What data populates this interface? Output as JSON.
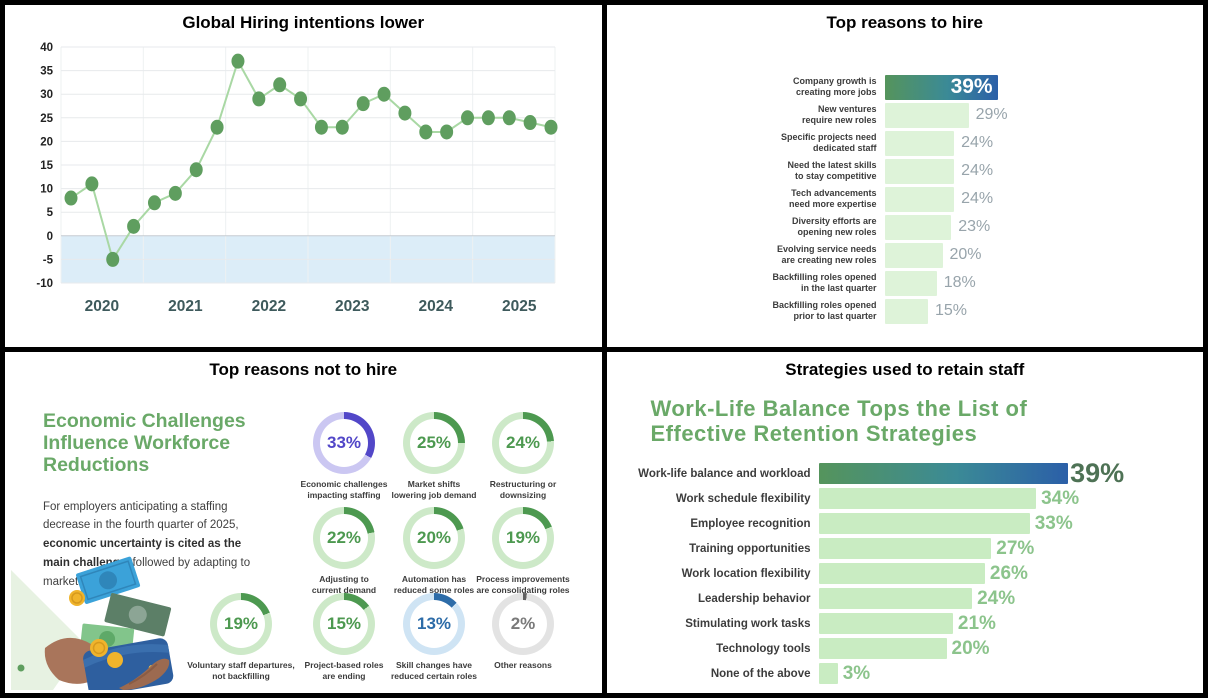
{
  "colors": {
    "dot_green": "#5f9e5f",
    "line_green": "#a9d8a4",
    "neg_band_blue": "#dcedf8",
    "grid_line": "#e7eaec",
    "zero_line": "#c5ccd2",
    "year_label": "#3e5a5c",
    "tick_label": "#222222",
    "donut_green": "#4d9950",
    "donut_green_track": "#cde9c8",
    "donut_purple": "#5247c8",
    "donut_purple_track": "#cbc7f2",
    "donut_blue": "#2d6ca8",
    "donut_blue_track": "#cfe4f4",
    "donut_gray": "#5f5f5f",
    "donut_gray_track": "#e3e3e3",
    "donut_gray_text": "#7a7a7a"
  },
  "chart_data": [
    {
      "id": "hiring_line",
      "type": "line",
      "title": "Global Hiring intentions lower",
      "x_labels": [
        "2020",
        "2021",
        "2022",
        "2023",
        "2024",
        "2025"
      ],
      "values": [
        8,
        11,
        -5,
        2,
        7,
        9,
        14,
        23,
        37,
        29,
        32,
        29,
        23,
        23,
        28,
        30,
        26,
        22,
        22,
        25,
        25,
        25,
        24,
        23
      ],
      "yticks": [
        40,
        35,
        30,
        25,
        20,
        15,
        10,
        5,
        0,
        -5,
        -10
      ],
      "ylim": [
        -10,
        40
      ],
      "grid": true,
      "negative_band_shaded": true,
      "legend": "none"
    },
    {
      "id": "hire_bars",
      "type": "bar",
      "title": "Top reasons to hire",
      "orientation": "horizontal",
      "items": [
        {
          "label": [
            "Company growth is",
            "creating more jobs"
          ],
          "value": 39,
          "display": "39%",
          "highlight": true
        },
        {
          "label": [
            "New ventures",
            "require new roles"
          ],
          "value": 29,
          "display": "29%"
        },
        {
          "label": [
            "Specific projects need",
            "dedicated staff"
          ],
          "value": 24,
          "display": "24%"
        },
        {
          "label": [
            "Need the latest skills",
            "to stay competitive"
          ],
          "value": 24,
          "display": "24%"
        },
        {
          "label": [
            "Tech advancements",
            "need more expertise"
          ],
          "value": 24,
          "display": "24%"
        },
        {
          "label": [
            "Diversity efforts are",
            "opening new roles"
          ],
          "value": 23,
          "display": "23%"
        },
        {
          "label": [
            "Evolving service needs",
            "are creating new roles"
          ],
          "value": 20,
          "display": "20%"
        },
        {
          "label": [
            "Backfilling roles opened",
            "in the last quarter"
          ],
          "value": 18,
          "display": "18%"
        },
        {
          "label": [
            "Backfilling roles opened",
            "prior to last quarter"
          ],
          "value": 15,
          "display": "15%"
        }
      ]
    },
    {
      "id": "not_hire_donuts",
      "type": "donut-grid",
      "title": "Top reasons not to hire",
      "heading": "Economic Challenges Influence Workforce Reductions",
      "body_segments": [
        {
          "text": "For employers anticipating a staffing decrease in the fourth quarter of 2025, ",
          "bold": false
        },
        {
          "text": "economic uncertainty is cited as the main challenge,",
          "bold": true
        },
        {
          "text": " followed by adapting to market changes.",
          "bold": false
        }
      ],
      "items": [
        {
          "value": 33,
          "display": "33%",
          "label": [
            "Economic challenges",
            "impacting staffing"
          ],
          "color": "purple",
          "row": 1,
          "col": 2
        },
        {
          "value": 25,
          "display": "25%",
          "label": [
            "Market shifts",
            "lowering job demand"
          ],
          "color": "green",
          "row": 1,
          "col": 3
        },
        {
          "value": 24,
          "display": "24%",
          "label": [
            "Restructuring or",
            "downsizing"
          ],
          "color": "green",
          "row": 1,
          "col": 4
        },
        {
          "value": 22,
          "display": "22%",
          "label": [
            "Adjusting to",
            "current demand"
          ],
          "color": "green",
          "row": 2,
          "col": 2
        },
        {
          "value": 20,
          "display": "20%",
          "label": [
            "Automation has",
            "reduced some roles"
          ],
          "color": "green",
          "row": 2,
          "col": 3
        },
        {
          "value": 19,
          "display": "19%",
          "label": [
            "Process improvements",
            "are consolidating roles"
          ],
          "color": "green",
          "row": 2,
          "col": 4
        },
        {
          "value": 19,
          "display": "19%",
          "label": [
            "Voluntary staff departures,",
            "not backfilling"
          ],
          "color": "green",
          "row": 3,
          "col": 1
        },
        {
          "value": 15,
          "display": "15%",
          "label": [
            "Project-based roles",
            "are ending"
          ],
          "color": "green",
          "row": 3,
          "col": 2
        },
        {
          "value": 13,
          "display": "13%",
          "label": [
            "Skill changes have",
            "reduced certain roles"
          ],
          "color": "blue",
          "row": 3,
          "col": 3
        },
        {
          "value": 2,
          "display": "2%",
          "label": [
            "Other reasons"
          ],
          "color": "gray",
          "row": 3,
          "col": 4
        }
      ]
    },
    {
      "id": "retain_bars",
      "type": "bar",
      "title": "Strategies used to retain staff",
      "subtitle": "Work-Life Balance Tops the List of\nEffective Retention Strategies",
      "orientation": "horizontal",
      "items": [
        {
          "label": "Work-life balance and workload",
          "value": 39,
          "display": "39%",
          "highlight": true
        },
        {
          "label": "Work schedule flexibility",
          "value": 34,
          "display": "34%"
        },
        {
          "label": "Employee recognition",
          "value": 33,
          "display": "33%"
        },
        {
          "label": "Training opportunities",
          "value": 27,
          "display": "27%"
        },
        {
          "label": "Work location flexibility",
          "value": 26,
          "display": "26%"
        },
        {
          "label": "Leadership behavior",
          "value": 24,
          "display": "24%"
        },
        {
          "label": "Stimulating work tasks",
          "value": 21,
          "display": "21%"
        },
        {
          "label": "Technology tools",
          "value": 20,
          "display": "20%"
        },
        {
          "label": "None of the above",
          "value": 3,
          "display": "3%"
        }
      ]
    }
  ]
}
